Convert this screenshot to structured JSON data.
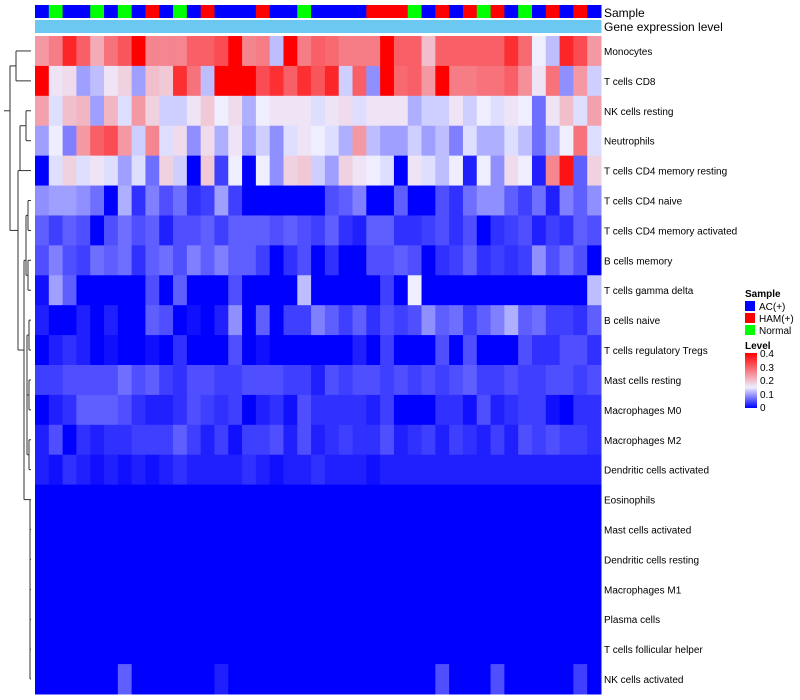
{
  "chart_data": {
    "type": "heatmap",
    "annotation_rows": [
      "Sample",
      "Gene expression level"
    ],
    "row_labels": [
      "Monocytes",
      "T cells CD8",
      "NK cells resting",
      "Neutrophils",
      "T cells CD4 memory resting",
      "T cells CD4 naive",
      "T cells CD4 memory activated",
      "B cells memory",
      "T cells gamma delta",
      "B cells naive",
      "T cells regulatory  Tregs",
      "Mast cells resting",
      "Macrophages M0",
      "Macrophages M2",
      "Dendritic cells activated",
      "Eosinophils",
      "Mast cells activated",
      "Dendritic cells resting",
      "Macrophages M1",
      "Plasma cells",
      "T cells follicular helper",
      "NK cells activated"
    ],
    "sample_groups": [
      "AC(+)",
      "Normal",
      "AC(+)",
      "AC(+)",
      "Normal",
      "AC(+)",
      "Normal",
      "AC(+)",
      "HAM(+)",
      "AC(+)",
      "Normal",
      "AC(+)",
      "HAM(+)",
      "AC(+)",
      "AC(+)",
      "AC(+)",
      "HAM(+)",
      "AC(+)",
      "AC(+)",
      "Normal",
      "AC(+)",
      "AC(+)",
      "AC(+)",
      "AC(+)",
      "HAM(+)",
      "HAM(+)",
      "HAM(+)",
      "Normal",
      "AC(+)",
      "HAM(+)",
      "AC(+)",
      "HAM(+)",
      "Normal",
      "HAM(+)",
      "AC(+)",
      "Normal",
      "AC(+)",
      "HAM(+)",
      "AC(+)",
      "HAM(+)",
      "AC(+)"
    ],
    "values": [
      [
        0.24,
        0.27,
        0.36,
        0.3,
        0.22,
        0.28,
        0.31,
        0.4,
        0.26,
        0.26,
        0.26,
        0.3,
        0.3,
        0.32,
        0.4,
        0.26,
        0.27,
        0.12,
        0.4,
        0.27,
        0.3,
        0.29,
        0.27,
        0.27,
        0.27,
        0.4,
        0.3,
        0.3,
        0.2,
        0.3,
        0.3,
        0.3,
        0.3,
        0.3,
        0.35,
        0.29,
        0.15,
        0.12,
        0.36,
        0.32,
        0.24
      ],
      [
        0.4,
        0.16,
        0.17,
        0.1,
        0.12,
        0.16,
        0.18,
        0.1,
        0.2,
        0.19,
        0.35,
        0.28,
        0.12,
        0.4,
        0.4,
        0.4,
        0.32,
        0.35,
        0.3,
        0.35,
        0.31,
        0.36,
        0.13,
        0.3,
        0.09,
        0.4,
        0.29,
        0.3,
        0.24,
        0.4,
        0.27,
        0.27,
        0.28,
        0.28,
        0.3,
        0.25,
        0.16,
        0.28,
        0.09,
        0.24,
        0.13
      ],
      [
        0.23,
        0.14,
        0.2,
        0.21,
        0.1,
        0.21,
        0.14,
        0.24,
        0.18,
        0.13,
        0.13,
        0.16,
        0.19,
        0.15,
        0.17,
        0.11,
        0.15,
        0.16,
        0.16,
        0.16,
        0.14,
        0.16,
        0.17,
        0.14,
        0.16,
        0.16,
        0.16,
        0.11,
        0.13,
        0.13,
        0.16,
        0.13,
        0.15,
        0.14,
        0.16,
        0.15,
        0.07,
        0.16,
        0.2,
        0.14,
        0.23
      ],
      [
        0.1,
        0.15,
        0.08,
        0.24,
        0.3,
        0.32,
        0.24,
        0.13,
        0.26,
        0.14,
        0.17,
        0.09,
        0.17,
        0.11,
        0.16,
        0.1,
        0.13,
        0.09,
        0.14,
        0.16,
        0.15,
        0.14,
        0.11,
        0.24,
        0.12,
        0.1,
        0.1,
        0.13,
        0.1,
        0.12,
        0.08,
        0.14,
        0.11,
        0.11,
        0.14,
        0.12,
        0.07,
        0.11,
        0.15,
        0.28,
        0.14
      ],
      [
        0.0,
        0.14,
        0.18,
        0.14,
        0.16,
        0.14,
        0.1,
        0.14,
        0.07,
        0.18,
        0.13,
        0.0,
        0.19,
        0.04,
        0.15,
        0.0,
        0.15,
        0.09,
        0.18,
        0.19,
        0.13,
        0.1,
        0.18,
        0.16,
        0.15,
        0.14,
        0.0,
        0.16,
        0.14,
        0.12,
        0.15,
        0.02,
        0.15,
        0.09,
        0.17,
        0.15,
        0.02,
        0.26,
        0.38,
        0.06,
        0.18
      ],
      [
        0.09,
        0.1,
        0.1,
        0.09,
        0.07,
        0.0,
        0.11,
        0.03,
        0.08,
        0.05,
        0.07,
        0.03,
        0.04,
        0.1,
        0.04,
        0.0,
        0.0,
        0.0,
        0.0,
        0.0,
        0.0,
        0.05,
        0.06,
        0.08,
        0.0,
        0.0,
        0.06,
        0.0,
        0.0,
        0.05,
        0.03,
        0.07,
        0.09,
        0.09,
        0.06,
        0.04,
        0.07,
        0.02,
        0.08,
        0.06,
        0.09
      ],
      [
        0.06,
        0.04,
        0.06,
        0.05,
        0.0,
        0.05,
        0.07,
        0.05,
        0.06,
        0.02,
        0.05,
        0.05,
        0.06,
        0.04,
        0.06,
        0.06,
        0.06,
        0.05,
        0.06,
        0.05,
        0.04,
        0.06,
        0.03,
        0.02,
        0.06,
        0.06,
        0.03,
        0.03,
        0.04,
        0.05,
        0.03,
        0.05,
        0.0,
        0.03,
        0.04,
        0.05,
        0.02,
        0.04,
        0.03,
        0.06,
        0.05
      ],
      [
        0.05,
        0.08,
        0.05,
        0.04,
        0.07,
        0.06,
        0.07,
        0.03,
        0.06,
        0.07,
        0.05,
        0.08,
        0.06,
        0.08,
        0.06,
        0.06,
        0.04,
        0.0,
        0.03,
        0.05,
        0.0,
        0.03,
        0.0,
        0.0,
        0.05,
        0.05,
        0.06,
        0.05,
        0.0,
        0.03,
        0.04,
        0.06,
        0.03,
        0.04,
        0.03,
        0.04,
        0.09,
        0.05,
        0.07,
        0.05,
        0.0
      ],
      [
        0.01,
        0.1,
        0.06,
        0.0,
        0.0,
        0.0,
        0.0,
        0.0,
        0.05,
        0.0,
        0.06,
        0.0,
        0.0,
        0.0,
        0.05,
        0.0,
        0.0,
        0.0,
        0.0,
        0.12,
        0.0,
        0.0,
        0.0,
        0.0,
        0.0,
        0.04,
        0.0,
        0.15,
        0.0,
        0.0,
        0.0,
        0.0,
        0.0,
        0.0,
        0.0,
        0.0,
        0.0,
        0.0,
        0.0,
        0.0,
        0.12
      ],
      [
        0.02,
        0.0,
        0.0,
        0.02,
        0.0,
        0.02,
        0.0,
        0.0,
        0.06,
        0.05,
        0.0,
        0.01,
        0.0,
        0.02,
        0.09,
        0.0,
        0.06,
        0.0,
        0.04,
        0.04,
        0.08,
        0.06,
        0.04,
        0.06,
        0.03,
        0.05,
        0.04,
        0.05,
        0.09,
        0.06,
        0.07,
        0.04,
        0.06,
        0.08,
        0.11,
        0.06,
        0.07,
        0.04,
        0.04,
        0.03,
        0.06
      ],
      [
        0.0,
        0.02,
        0.03,
        0.02,
        0.0,
        0.01,
        0.0,
        0.0,
        0.01,
        0.0,
        0.03,
        0.0,
        0.0,
        0.0,
        0.05,
        0.0,
        0.01,
        0.0,
        0.0,
        0.0,
        0.0,
        0.0,
        0.0,
        0.02,
        0.0,
        0.04,
        0.0,
        0.0,
        0.0,
        0.05,
        0.0,
        0.05,
        0.0,
        0.0,
        0.0,
        0.05,
        0.03,
        0.03,
        0.05,
        0.05,
        0.03
      ],
      [
        0.04,
        0.04,
        0.05,
        0.05,
        0.05,
        0.05,
        0.07,
        0.05,
        0.06,
        0.04,
        0.03,
        0.05,
        0.05,
        0.04,
        0.04,
        0.05,
        0.05,
        0.05,
        0.04,
        0.04,
        0.02,
        0.05,
        0.04,
        0.05,
        0.05,
        0.04,
        0.05,
        0.04,
        0.05,
        0.04,
        0.05,
        0.06,
        0.04,
        0.04,
        0.05,
        0.04,
        0.04,
        0.05,
        0.05,
        0.04,
        0.05
      ],
      [
        0.0,
        0.02,
        0.03,
        0.06,
        0.06,
        0.06,
        0.05,
        0.03,
        0.02,
        0.02,
        0.03,
        0.05,
        0.04,
        0.03,
        0.04,
        0.0,
        0.02,
        0.03,
        0.01,
        0.05,
        0.03,
        0.03,
        0.03,
        0.03,
        0.02,
        0.04,
        0.0,
        0.0,
        0.0,
        0.03,
        0.03,
        0.01,
        0.05,
        0.02,
        0.03,
        0.04,
        0.04,
        0.01,
        0.0,
        0.03,
        0.03
      ],
      [
        0.02,
        0.05,
        0.0,
        0.03,
        0.02,
        0.03,
        0.03,
        0.04,
        0.04,
        0.04,
        0.06,
        0.04,
        0.02,
        0.04,
        0.01,
        0.04,
        0.04,
        0.05,
        0.02,
        0.05,
        0.02,
        0.03,
        0.04,
        0.03,
        0.03,
        0.05,
        0.02,
        0.03,
        0.04,
        0.02,
        0.04,
        0.03,
        0.02,
        0.04,
        0.02,
        0.05,
        0.04,
        0.05,
        0.04,
        0.04,
        0.03
      ],
      [
        0.02,
        0.01,
        0.03,
        0.02,
        0.01,
        0.02,
        0.01,
        0.02,
        0.01,
        0.02,
        0.03,
        0.02,
        0.02,
        0.02,
        0.02,
        0.03,
        0.02,
        0.01,
        0.02,
        0.02,
        0.03,
        0.02,
        0.02,
        0.02,
        0.01,
        0.02,
        0.02,
        0.02,
        0.02,
        0.02,
        0.02,
        0.02,
        0.02,
        0.02,
        0.02,
        0.02,
        0.02,
        0.02,
        0.02,
        0.02,
        0.02
      ],
      [
        0,
        0,
        0,
        0,
        0,
        0,
        0,
        0,
        0,
        0,
        0,
        0,
        0,
        0,
        0,
        0,
        0,
        0,
        0,
        0,
        0,
        0,
        0,
        0,
        0,
        0,
        0,
        0,
        0,
        0,
        0,
        0,
        0,
        0,
        0,
        0,
        0,
        0,
        0,
        0,
        0
      ],
      [
        0,
        0,
        0,
        0,
        0,
        0,
        0,
        0,
        0,
        0,
        0,
        0,
        0,
        0,
        0,
        0,
        0,
        0,
        0,
        0,
        0,
        0,
        0,
        0,
        0,
        0,
        0,
        0,
        0,
        0,
        0,
        0,
        0,
        0,
        0,
        0,
        0,
        0,
        0,
        0,
        0
      ],
      [
        0,
        0,
        0,
        0,
        0,
        0,
        0,
        0,
        0,
        0,
        0,
        0,
        0,
        0,
        0,
        0,
        0,
        0,
        0,
        0,
        0,
        0,
        0,
        0,
        0,
        0,
        0,
        0,
        0,
        0,
        0,
        0,
        0,
        0,
        0,
        0,
        0,
        0,
        0,
        0,
        0
      ],
      [
        0,
        0,
        0,
        0,
        0,
        0,
        0,
        0,
        0,
        0,
        0,
        0,
        0,
        0,
        0,
        0,
        0,
        0,
        0,
        0,
        0,
        0,
        0,
        0,
        0,
        0,
        0,
        0,
        0,
        0,
        0,
        0,
        0,
        0,
        0,
        0,
        0,
        0,
        0,
        0,
        0
      ],
      [
        0,
        0,
        0,
        0,
        0,
        0,
        0,
        0,
        0,
        0,
        0,
        0,
        0,
        0,
        0,
        0,
        0,
        0,
        0,
        0,
        0,
        0,
        0,
        0,
        0,
        0,
        0,
        0,
        0,
        0,
        0,
        0,
        0,
        0,
        0,
        0,
        0,
        0,
        0,
        0,
        0
      ],
      [
        0,
        0,
        0,
        0,
        0,
        0,
        0,
        0,
        0,
        0,
        0,
        0,
        0,
        0,
        0,
        0,
        0,
        0,
        0,
        0,
        0,
        0,
        0,
        0,
        0,
        0,
        0,
        0,
        0,
        0,
        0,
        0,
        0,
        0,
        0,
        0,
        0,
        0,
        0,
        0,
        0
      ],
      [
        0,
        0,
        0,
        0,
        0,
        0,
        0.06,
        0,
        0,
        0,
        0,
        0,
        0,
        0.02,
        0,
        0,
        0,
        0,
        0,
        0,
        0,
        0,
        0,
        0,
        0,
        0,
        0,
        0,
        0,
        0.05,
        0,
        0,
        0,
        0.05,
        0,
        0,
        0,
        0,
        0,
        0.04,
        0
      ]
    ],
    "color_scale": {
      "min": 0,
      "max": 0.4,
      "stops": [
        {
          "value": 0,
          "color": "#0000FF"
        },
        {
          "value": 0.15,
          "color": "#EEEEFF"
        },
        {
          "value": 0.4,
          "color": "#FF0000"
        }
      ]
    },
    "annotation_colors": {
      "Sample": {
        "AC(+)": "#0000FF",
        "HAM(+)": "#FF0000",
        "Normal": "#00FF00"
      },
      "Gene expression level": "#6CC8F0"
    },
    "legend": {
      "sample_title": "Sample",
      "sample_entries": [
        "AC(+)",
        "HAM(+)",
        "Normal"
      ],
      "level_title": "Level",
      "level_ticks": [
        "0.4",
        "0.3",
        "0.2",
        "0.1",
        "0"
      ],
      "placement": "right"
    },
    "row_dendrogram": true
  }
}
